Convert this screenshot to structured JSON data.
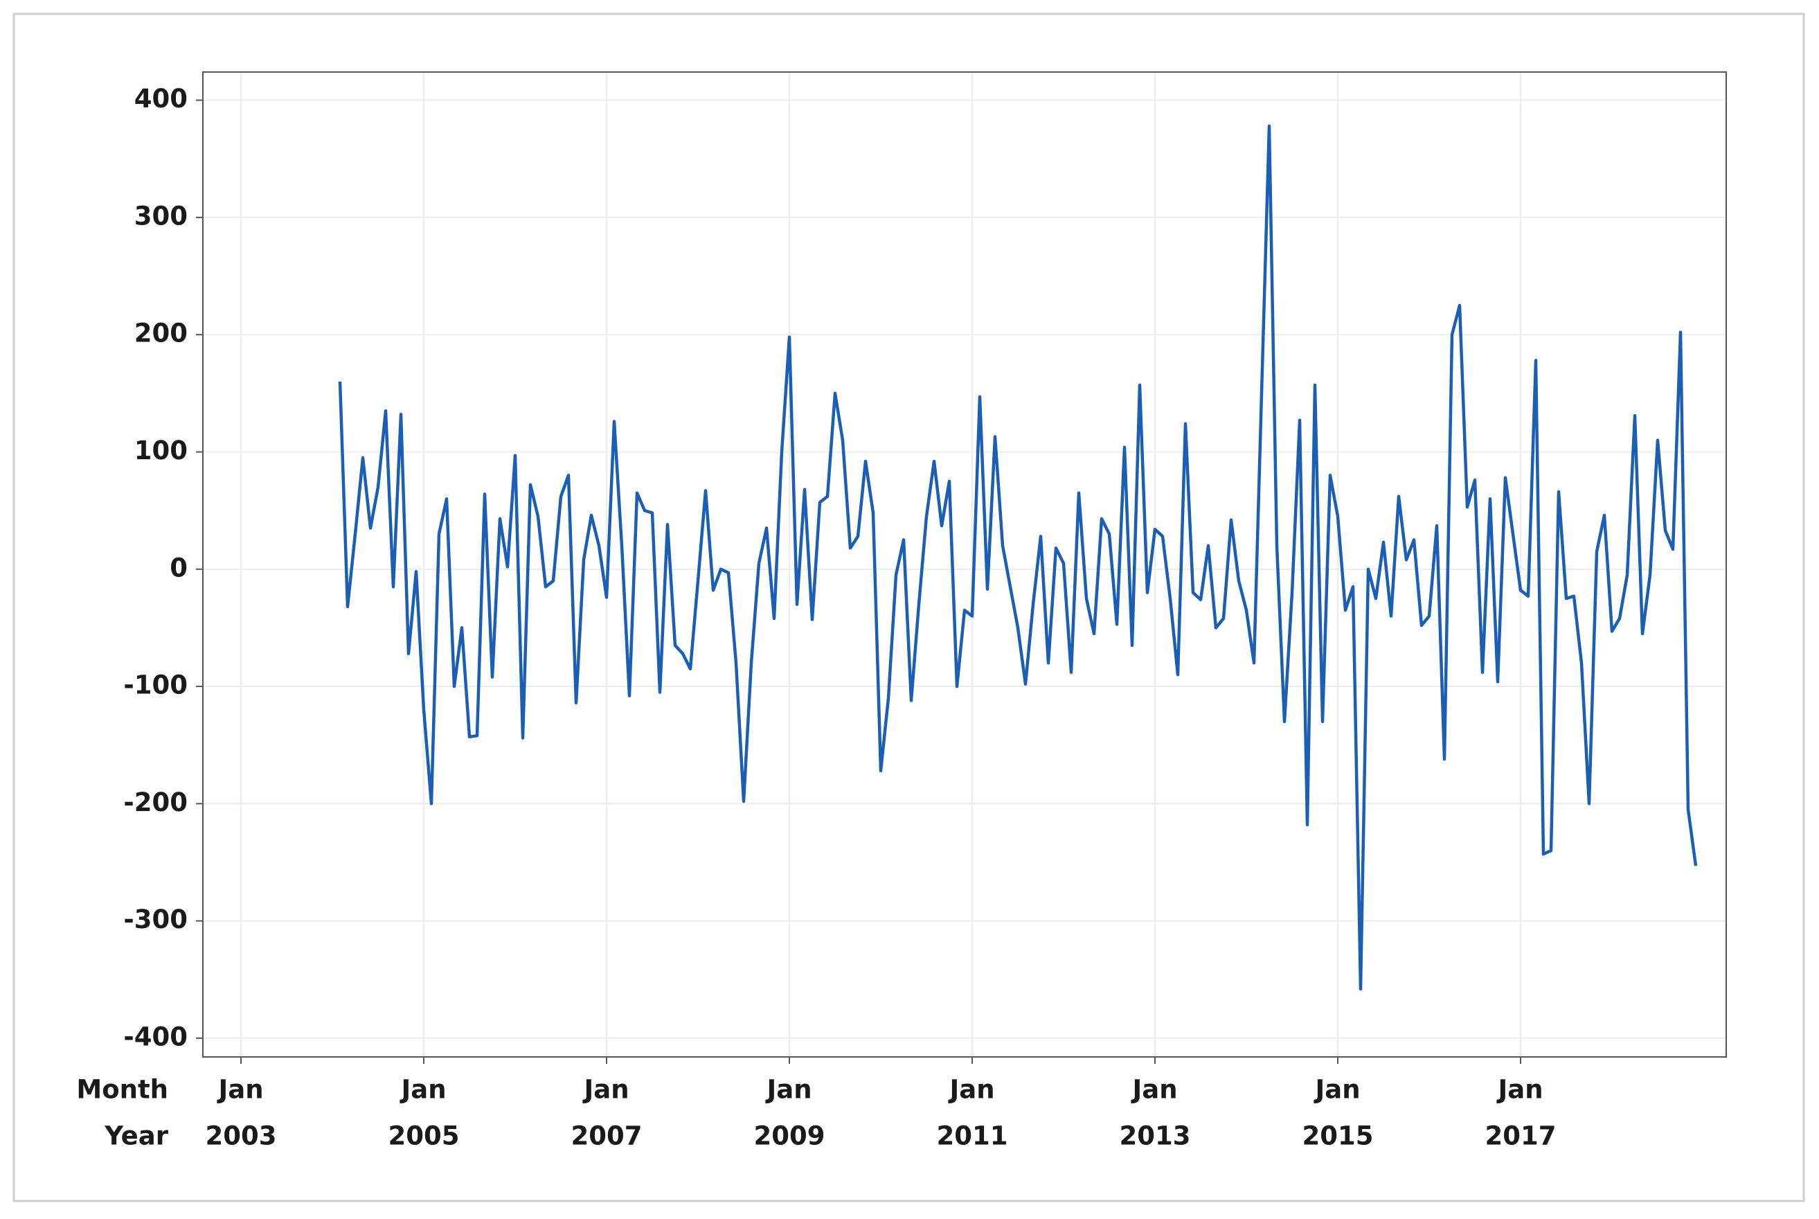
{
  "chart_data": {
    "type": "line",
    "x": [
      "2004-02",
      "2004-03",
      "2004-04",
      "2004-05",
      "2004-06",
      "2004-07",
      "2004-08",
      "2004-09",
      "2004-10",
      "2004-11",
      "2004-12",
      "2005-01",
      "2005-02",
      "2005-03",
      "2005-04",
      "2005-05",
      "2005-06",
      "2005-07",
      "2005-08",
      "2005-09",
      "2005-10",
      "2005-11",
      "2005-12",
      "2006-01",
      "2006-02",
      "2006-03",
      "2006-04",
      "2006-05",
      "2006-06",
      "2006-07",
      "2006-08",
      "2006-09",
      "2006-10",
      "2006-11",
      "2006-12",
      "2007-01",
      "2007-02",
      "2007-03",
      "2007-04",
      "2007-05",
      "2007-06",
      "2007-07",
      "2007-08",
      "2007-09",
      "2007-10",
      "2007-11",
      "2007-12",
      "2008-01",
      "2008-02",
      "2008-03",
      "2008-04",
      "2008-05",
      "2008-06",
      "2008-07",
      "2008-08",
      "2008-09",
      "2008-10",
      "2008-11",
      "2008-12",
      "2009-01",
      "2009-02",
      "2009-03",
      "2009-04",
      "2009-05",
      "2009-06",
      "2009-07",
      "2009-08",
      "2009-09",
      "2009-10",
      "2009-11",
      "2009-12",
      "2010-01",
      "2010-02",
      "2010-03",
      "2010-04",
      "2010-05",
      "2010-06",
      "2010-07",
      "2010-08",
      "2010-09",
      "2010-10",
      "2010-11",
      "2010-12",
      "2011-01",
      "2011-02",
      "2011-03",
      "2011-04",
      "2011-05",
      "2011-06",
      "2011-07",
      "2011-08",
      "2011-09",
      "2011-10",
      "2011-11",
      "2011-12",
      "2012-01",
      "2012-02",
      "2012-03",
      "2012-04",
      "2012-05",
      "2012-06",
      "2012-07",
      "2012-08",
      "2012-09",
      "2012-10",
      "2012-11",
      "2012-12",
      "2013-01",
      "2013-02",
      "2013-03",
      "2013-04",
      "2013-05",
      "2013-06",
      "2013-07",
      "2013-08",
      "2013-09",
      "2013-10",
      "2013-11",
      "2013-12",
      "2014-01",
      "2014-02",
      "2014-03",
      "2014-04",
      "2014-05",
      "2014-06",
      "2014-07",
      "2014-08",
      "2014-09",
      "2014-10",
      "2014-11",
      "2014-12",
      "2015-01",
      "2015-02",
      "2015-03",
      "2015-04",
      "2015-05",
      "2015-06",
      "2015-07",
      "2015-08",
      "2015-09",
      "2015-10",
      "2015-11",
      "2015-12",
      "2016-01",
      "2016-02",
      "2016-03",
      "2016-04",
      "2016-05",
      "2016-06",
      "2016-07",
      "2016-08",
      "2016-09",
      "2016-10",
      "2016-11",
      "2016-12",
      "2017-01",
      "2017-02",
      "2017-03",
      "2017-04",
      "2017-05",
      "2017-06",
      "2017-07",
      "2017-08",
      "2017-09",
      "2017-10",
      "2017-11",
      "2017-12",
      "2018-01",
      "2018-02",
      "2018-03",
      "2018-04",
      "2018-05",
      "2018-06",
      "2018-07",
      "2018-08",
      "2018-09",
      "2018-10",
      "2018-11",
      "2018-12"
    ],
    "series": [
      {
        "color": "#1a5fb4",
        "values": [
          160,
          -32,
          30,
          95,
          35,
          70,
          135,
          -15,
          132,
          -72,
          -2,
          -120,
          -200,
          30,
          60,
          -100,
          -50,
          -143,
          -142,
          64,
          -92,
          43,
          2,
          97,
          -144,
          72,
          45,
          -15,
          -10,
          62,
          80,
          -114,
          8,
          46,
          20,
          -24,
          126,
          20,
          -108,
          65,
          50,
          48,
          -105,
          38,
          -65,
          -72,
          -85,
          -10,
          67,
          -18,
          0,
          -3,
          -80,
          -198,
          -80,
          5,
          35,
          -42,
          100,
          198,
          -30,
          68,
          -43,
          57,
          62,
          150,
          110,
          18,
          28,
          92,
          48,
          -172,
          -110,
          -5,
          25,
          -112,
          -30,
          45,
          92,
          37,
          75,
          -100,
          -35,
          -40,
          147,
          -17,
          113,
          20,
          -15,
          -50,
          -98,
          -30,
          28,
          -80,
          18,
          5,
          -88,
          65,
          -25,
          -55,
          43,
          30,
          -47,
          104,
          -65,
          157,
          -20,
          34,
          28,
          -25,
          -90,
          124,
          -20,
          -26,
          20,
          -50,
          -42,
          42,
          -10,
          -35,
          -80,
          150,
          378,
          20,
          -130,
          -20,
          127,
          -218,
          157,
          -130,
          80,
          45,
          -35,
          -15,
          -358,
          0,
          -25,
          23,
          -40,
          62,
          8,
          25,
          -48,
          -40,
          37,
          -162,
          200,
          225,
          53,
          76,
          -88,
          60,
          -96,
          78,
          30,
          -18,
          -23,
          178,
          -243,
          -240,
          66,
          -25,
          -23,
          -80,
          -200,
          15,
          46,
          -53,
          -42,
          -5,
          131,
          -55,
          -5,
          110,
          33,
          17,
          202,
          -205,
          -253
        ]
      }
    ],
    "x_row_labels": [
      "Month",
      "Year"
    ],
    "xlim": [
      "2002-08",
      "2019-04"
    ],
    "xticks": [
      {
        "value": "2003-01",
        "label": "Jan",
        "year": "2003"
      },
      {
        "value": "2005-01",
        "label": "Jan",
        "year": "2005"
      },
      {
        "value": "2007-01",
        "label": "Jan",
        "year": "2007"
      },
      {
        "value": "2009-01",
        "label": "Jan",
        "year": "2009"
      },
      {
        "value": "2011-01",
        "label": "Jan",
        "year": "2011"
      },
      {
        "value": "2013-01",
        "label": "Jan",
        "year": "2013"
      },
      {
        "value": "2015-01",
        "label": "Jan",
        "year": "2015"
      },
      {
        "value": "2017-01",
        "label": "Jan",
        "year": "2017"
      }
    ],
    "ylim": [
      -416,
      424
    ],
    "yticks": [
      400,
      300,
      200,
      100,
      0,
      -100,
      -200,
      -300,
      -400
    ],
    "grid": true
  }
}
